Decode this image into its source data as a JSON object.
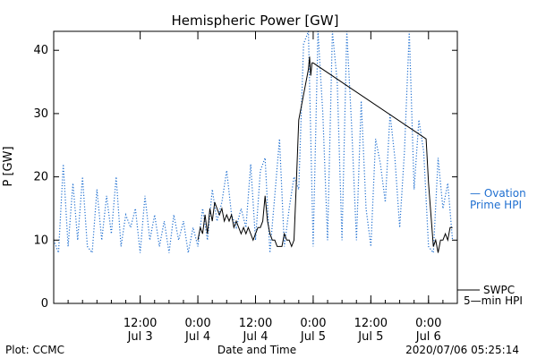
{
  "chart_data": {
    "type": "line",
    "title": "Hemispheric Power [GW]",
    "xlabel": "Date and Time",
    "ylabel": "P [GW]",
    "ylim": [
      0,
      43
    ],
    "yticks": [
      0,
      10,
      20,
      30,
      40
    ],
    "xlim": [
      "2020-07-02 18:00",
      "2020-07-06 06:00"
    ],
    "xticks": [
      {
        "t": "2020-07-03 12:00",
        "label_time": "12:00",
        "label_date": "Jul 3"
      },
      {
        "t": "2020-07-04 00:00",
        "label_time": "0:00",
        "label_date": "Jul 4"
      },
      {
        "t": "2020-07-04 12:00",
        "label_time": "12:00",
        "label_date": "Jul 4"
      },
      {
        "t": "2020-07-05 00:00",
        "label_time": "0:00",
        "label_date": "Jul 5"
      },
      {
        "t": "2020-07-05 12:00",
        "label_time": "12:00",
        "label_date": "Jul 5"
      },
      {
        "t": "2020-07-06 00:00",
        "label_time": "0:00",
        "label_date": "Jul 6"
      }
    ],
    "grid": false,
    "legend_position": "right",
    "series": [
      {
        "name": "Ovation Prime HPI",
        "legend_lines": [
          "— Ovation",
          "Prime HPI"
        ],
        "color": "#1f6fd0",
        "style": "dotted",
        "points": [
          [
            "2020-07-02 18:00",
            10
          ],
          [
            "2020-07-02 19:00",
            8
          ],
          [
            "2020-07-02 20:00",
            22
          ],
          [
            "2020-07-02 21:00",
            9
          ],
          [
            "2020-07-02 22:00",
            19
          ],
          [
            "2020-07-02 23:00",
            10
          ],
          [
            "2020-07-03 00:00",
            20
          ],
          [
            "2020-07-03 01:00",
            9
          ],
          [
            "2020-07-03 02:00",
            8
          ],
          [
            "2020-07-03 03:00",
            18
          ],
          [
            "2020-07-03 04:00",
            10
          ],
          [
            "2020-07-03 05:00",
            17
          ],
          [
            "2020-07-03 06:00",
            11
          ],
          [
            "2020-07-03 07:00",
            20
          ],
          [
            "2020-07-03 08:00",
            9
          ],
          [
            "2020-07-03 09:00",
            14
          ],
          [
            "2020-07-03 10:00",
            12
          ],
          [
            "2020-07-03 11:00",
            15
          ],
          [
            "2020-07-03 12:00",
            8
          ],
          [
            "2020-07-03 13:00",
            17
          ],
          [
            "2020-07-03 14:00",
            10
          ],
          [
            "2020-07-03 15:00",
            14
          ],
          [
            "2020-07-03 16:00",
            9
          ],
          [
            "2020-07-03 17:00",
            13
          ],
          [
            "2020-07-03 18:00",
            8
          ],
          [
            "2020-07-03 19:00",
            14
          ],
          [
            "2020-07-03 20:00",
            10
          ],
          [
            "2020-07-03 21:00",
            13
          ],
          [
            "2020-07-03 22:00",
            8
          ],
          [
            "2020-07-03 23:00",
            12
          ],
          [
            "2020-07-04 00:00",
            9
          ],
          [
            "2020-07-04 01:00",
            15
          ],
          [
            "2020-07-04 02:00",
            10
          ],
          [
            "2020-07-04 03:00",
            18
          ],
          [
            "2020-07-04 04:00",
            13
          ],
          [
            "2020-07-04 05:00",
            16
          ],
          [
            "2020-07-04 06:00",
            21
          ],
          [
            "2020-07-04 07:00",
            14
          ],
          [
            "2020-07-04 08:00",
            12
          ],
          [
            "2020-07-04 09:00",
            15
          ],
          [
            "2020-07-04 10:00",
            12
          ],
          [
            "2020-07-04 11:00",
            22
          ],
          [
            "2020-07-04 12:00",
            10
          ],
          [
            "2020-07-04 13:00",
            21
          ],
          [
            "2020-07-04 14:00",
            23
          ],
          [
            "2020-07-04 15:00",
            8
          ],
          [
            "2020-07-04 16:00",
            17
          ],
          [
            "2020-07-04 17:00",
            26
          ],
          [
            "2020-07-04 18:00",
            9
          ],
          [
            "2020-07-04 19:00",
            15
          ],
          [
            "2020-07-04 20:00",
            20
          ],
          [
            "2020-07-04 21:00",
            18
          ],
          [
            "2020-07-04 22:00",
            41
          ],
          [
            "2020-07-04 23:00",
            43
          ],
          [
            "2020-07-05 00:00",
            9
          ],
          [
            "2020-07-05 01:00",
            43
          ],
          [
            "2020-07-05 02:00",
            30
          ],
          [
            "2020-07-05 03:00",
            10
          ],
          [
            "2020-07-05 04:00",
            43
          ],
          [
            "2020-07-05 05:00",
            35
          ],
          [
            "2020-07-05 06:00",
            10
          ],
          [
            "2020-07-05 07:00",
            43
          ],
          [
            "2020-07-05 08:00",
            28
          ],
          [
            "2020-07-05 09:00",
            10
          ],
          [
            "2020-07-05 10:00",
            32
          ],
          [
            "2020-07-05 11:00",
            15
          ],
          [
            "2020-07-05 12:00",
            9
          ],
          [
            "2020-07-05 13:00",
            26
          ],
          [
            "2020-07-05 14:00",
            22
          ],
          [
            "2020-07-05 15:00",
            16
          ],
          [
            "2020-07-05 16:00",
            30
          ],
          [
            "2020-07-05 17:00",
            23
          ],
          [
            "2020-07-05 18:00",
            12
          ],
          [
            "2020-07-05 19:00",
            24
          ],
          [
            "2020-07-05 20:00",
            43
          ],
          [
            "2020-07-05 21:00",
            18
          ],
          [
            "2020-07-05 22:00",
            29
          ],
          [
            "2020-07-05 23:00",
            24
          ],
          [
            "2020-07-06 00:00",
            9
          ],
          [
            "2020-07-06 01:00",
            8
          ],
          [
            "2020-07-06 02:00",
            23
          ],
          [
            "2020-07-06 03:00",
            15
          ],
          [
            "2020-07-06 04:00",
            19
          ],
          [
            "2020-07-06 05:00",
            10
          ]
        ]
      },
      {
        "name": "SWPC 5-min HPI",
        "legend_lines": [
          "SWPC",
          "5—min HPI"
        ],
        "color": "#000000",
        "style": "solid",
        "points": [
          [
            "2020-07-04 00:00",
            10
          ],
          [
            "2020-07-04 00:30",
            12
          ],
          [
            "2020-07-04 01:00",
            11
          ],
          [
            "2020-07-04 01:30",
            14
          ],
          [
            "2020-07-04 02:00",
            11
          ],
          [
            "2020-07-04 02:30",
            15
          ],
          [
            "2020-07-04 03:00",
            13
          ],
          [
            "2020-07-04 03:30",
            16
          ],
          [
            "2020-07-04 04:00",
            15
          ],
          [
            "2020-07-04 04:30",
            14
          ],
          [
            "2020-07-04 05:00",
            15
          ],
          [
            "2020-07-04 05:30",
            13
          ],
          [
            "2020-07-04 06:00",
            14
          ],
          [
            "2020-07-04 06:30",
            13
          ],
          [
            "2020-07-04 07:00",
            14
          ],
          [
            "2020-07-04 07:30",
            12
          ],
          [
            "2020-07-04 08:00",
            13
          ],
          [
            "2020-07-04 08:30",
            12
          ],
          [
            "2020-07-04 09:00",
            11
          ],
          [
            "2020-07-04 09:30",
            12
          ],
          [
            "2020-07-04 10:00",
            11
          ],
          [
            "2020-07-04 10:30",
            12
          ],
          [
            "2020-07-04 11:00",
            11
          ],
          [
            "2020-07-04 11:30",
            10
          ],
          [
            "2020-07-04 12:00",
            11
          ],
          [
            "2020-07-04 12:30",
            12
          ],
          [
            "2020-07-04 13:00",
            12
          ],
          [
            "2020-07-04 13:30",
            13
          ],
          [
            "2020-07-04 14:00",
            17
          ],
          [
            "2020-07-04 14:30",
            13
          ],
          [
            "2020-07-04 15:00",
            11
          ],
          [
            "2020-07-04 15:30",
            10
          ],
          [
            "2020-07-04 16:00",
            10
          ],
          [
            "2020-07-04 16:30",
            9
          ],
          [
            "2020-07-04 17:00",
            9
          ],
          [
            "2020-07-04 17:30",
            9
          ],
          [
            "2020-07-04 18:00",
            11
          ],
          [
            "2020-07-04 18:30",
            10
          ],
          [
            "2020-07-04 19:00",
            10
          ],
          [
            "2020-07-04 19:30",
            9
          ],
          [
            "2020-07-04 20:00",
            10
          ],
          [
            "2020-07-04 20:30",
            19
          ],
          [
            "2020-07-04 21:00",
            29
          ],
          [
            "2020-07-04 21:30",
            31
          ],
          [
            "2020-07-04 22:00",
            33
          ],
          [
            "2020-07-04 22:30",
            35
          ],
          [
            "2020-07-04 23:00",
            37
          ],
          [
            "2020-07-04 23:15",
            39
          ],
          [
            "2020-07-04 23:30",
            36
          ],
          [
            "2020-07-04 23:45",
            38
          ],
          [
            "2020-07-05 00:00",
            38
          ],
          [
            "2020-07-05 23:30",
            26
          ],
          [
            "2020-07-06 00:00",
            19
          ],
          [
            "2020-07-06 01:00",
            9
          ],
          [
            "2020-07-06 01:30",
            10
          ],
          [
            "2020-07-06 02:00",
            8
          ],
          [
            "2020-07-06 02:30",
            10
          ],
          [
            "2020-07-06 03:00",
            10
          ],
          [
            "2020-07-06 03:30",
            11
          ],
          [
            "2020-07-06 04:00",
            10
          ],
          [
            "2020-07-06 04:30",
            12
          ],
          [
            "2020-07-06 05:00",
            12
          ]
        ]
      }
    ]
  },
  "footer": {
    "left": "Plot: CCMC",
    "center": "Date and Time",
    "right": "2020/07/06 05:25:14"
  }
}
